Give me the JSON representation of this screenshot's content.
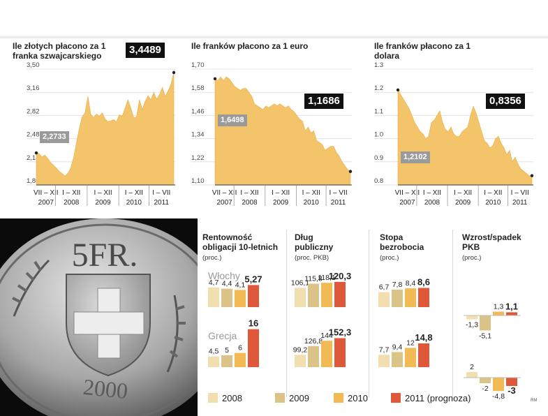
{
  "colors": {
    "area": "#f4c46a",
    "c2008": "#f2dfb0",
    "c2009": "#dcc387",
    "c2010": "#f2ba55",
    "c2011": "#e0583a",
    "callout": "#111111",
    "start_callout": "#9a9a9a"
  },
  "chart_data": [
    {
      "type": "area",
      "title": "Ile złotych płacono za 1 franka szwajcarskiego",
      "yticks": [
        "3,50",
        "3,16",
        "2,82",
        "2,48",
        "2,14",
        "1,80"
      ],
      "ylim": [
        1.8,
        3.5
      ],
      "xlabels": [
        [
          "VII – XII",
          "2007"
        ],
        [
          "I – XII",
          "2008"
        ],
        [
          "I – XII",
          "2009"
        ],
        [
          "I – XII",
          "2010"
        ],
        [
          "I – VII",
          "2011"
        ]
      ],
      "series": [
        2.27,
        2.26,
        2.21,
        2.24,
        2.19,
        2.13,
        2.09,
        2.05,
        2.0,
        1.97,
        1.93,
        1.97,
        2.05,
        2.2,
        2.42,
        2.63,
        2.8,
        2.86,
        3.1,
        2.84,
        2.79,
        2.84,
        2.81,
        2.86,
        2.77,
        2.73,
        2.74,
        2.76,
        2.73,
        2.83,
        2.81,
        2.93,
        3.05,
        2.93,
        2.79,
        2.8,
        3.05,
        2.91,
        3.03,
        3.11,
        3.05,
        3.16,
        3.06,
        3.13,
        3.23,
        3.1,
        3.18,
        3.28,
        3.45
      ],
      "start_label": "2,2733",
      "end_label": "3,4489"
    },
    {
      "type": "area",
      "title": "Ile franków płacono za 1 euro",
      "yticks": [
        "1,70",
        "1,58",
        "1,46",
        "1,34",
        "1,22",
        "1,10"
      ],
      "ylim": [
        1.1,
        1.7
      ],
      "xlabels": [
        [
          "VII – XII",
          "2007"
        ],
        [
          "I – XII",
          "2008"
        ],
        [
          "I – XII",
          "2009"
        ],
        [
          "I – XII",
          "2010"
        ],
        [
          "I – VII",
          "2011"
        ]
      ],
      "series": [
        1.65,
        1.64,
        1.66,
        1.64,
        1.66,
        1.65,
        1.63,
        1.61,
        1.6,
        1.59,
        1.6,
        1.6,
        1.58,
        1.56,
        1.52,
        1.51,
        1.5,
        1.49,
        1.51,
        1.5,
        1.51,
        1.52,
        1.51,
        1.52,
        1.51,
        1.5,
        1.51,
        1.49,
        1.48,
        1.46,
        1.44,
        1.43,
        1.38,
        1.4,
        1.37,
        1.38,
        1.33,
        1.32,
        1.31,
        1.28,
        1.29,
        1.3,
        1.3,
        1.27,
        1.25,
        1.22,
        1.2,
        1.18,
        1.17
      ],
      "start_label": "1,6498",
      "end_label": "1,1686"
    },
    {
      "type": "area",
      "title": "Ile franków płacono za 1 dolara",
      "yticks": [
        "1.3",
        "1.2",
        "1.1",
        "1.0",
        "0.9",
        "0.8"
      ],
      "ylim": [
        0.8,
        1.3
      ],
      "xlabels": [
        [
          "VII – XII",
          "2007"
        ],
        [
          "I – XII",
          "2008"
        ],
        [
          "I – XII",
          "2009"
        ],
        [
          "I – XII",
          "2010"
        ],
        [
          "I – VII",
          "2011"
        ]
      ],
      "series": [
        1.21,
        1.19,
        1.17,
        1.15,
        1.13,
        1.1,
        1.07,
        1.05,
        1.03,
        1.02,
        1.0,
        1.01,
        1.07,
        1.08,
        1.1,
        1.12,
        1.07,
        1.04,
        1.03,
        1.05,
        1.02,
        1.01,
        1.01,
        1.03,
        1.04,
        1.05,
        1.1,
        1.14,
        1.11,
        1.07,
        1.03,
        0.99,
        0.98,
        0.96,
        0.97,
        1.0,
        1.01,
        0.98,
        0.96,
        0.93,
        0.95,
        0.9,
        0.92,
        0.89,
        0.87,
        0.86,
        0.85,
        0.84,
        0.84
      ],
      "start_label": "1,2102",
      "end_label": "0,8356"
    },
    {
      "type": "bar",
      "title": "Rentowność obligacji 10-letnich",
      "subtitle": "(proc.)",
      "groups": [
        {
          "name": "Włochy",
          "values": [
            4.7,
            4.4,
            4.1,
            5.27
          ],
          "labels": [
            "4,7",
            "4,4",
            "4,1",
            "5,27"
          ]
        },
        {
          "name": "Grecja",
          "values": [
            4.5,
            5,
            6,
            16
          ],
          "labels": [
            "4,5",
            "5",
            "6",
            "16"
          ]
        }
      ]
    },
    {
      "type": "bar",
      "title": "Dług publiczny",
      "subtitle": "(proc. PKB)",
      "groups": [
        {
          "name": "Włochy",
          "values": [
            106.1,
            115.8,
            118.1,
            120.3
          ],
          "labels": [
            "106,1",
            "115,8",
            "118,1",
            "120,3"
          ]
        },
        {
          "name": "Grecja",
          "values": [
            99.2,
            126.8,
            144,
            152.3
          ],
          "labels": [
            "99,2",
            "126,8",
            "144",
            "152,3"
          ]
        }
      ]
    },
    {
      "type": "bar",
      "title": "Stopa bezrobocia",
      "subtitle": "(proc.)",
      "groups": [
        {
          "name": "Włochy",
          "values": [
            6.7,
            7.8,
            8.4,
            8.6
          ],
          "labels": [
            "6,7",
            "7,8",
            "8,4",
            "8,6"
          ]
        },
        {
          "name": "Grecja",
          "values": [
            7.7,
            9.4,
            12,
            14.8
          ],
          "labels": [
            "7,7",
            "9,4",
            "12",
            "14,8"
          ]
        }
      ]
    },
    {
      "type": "bar",
      "title": "Wzrost/spadek PKB",
      "subtitle": "(proc.)",
      "groups": [
        {
          "name": "Włochy",
          "values": [
            -1.3,
            -5.1,
            1.3,
            1.1
          ],
          "labels": [
            "-1,3",
            "-5,1",
            "1,3",
            "1,1"
          ]
        },
        {
          "name": "Grecja",
          "values": [
            2,
            -2,
            -4.8,
            -3
          ],
          "labels": [
            "2",
            "-2",
            "-4,8",
            "-3"
          ]
        }
      ]
    }
  ],
  "bars_section": {
    "countries": [
      "Włochy",
      "Grecja"
    ]
  },
  "legend": [
    "2008",
    "2009",
    "2010",
    "2011 (prognoza)"
  ],
  "credit": "RM"
}
